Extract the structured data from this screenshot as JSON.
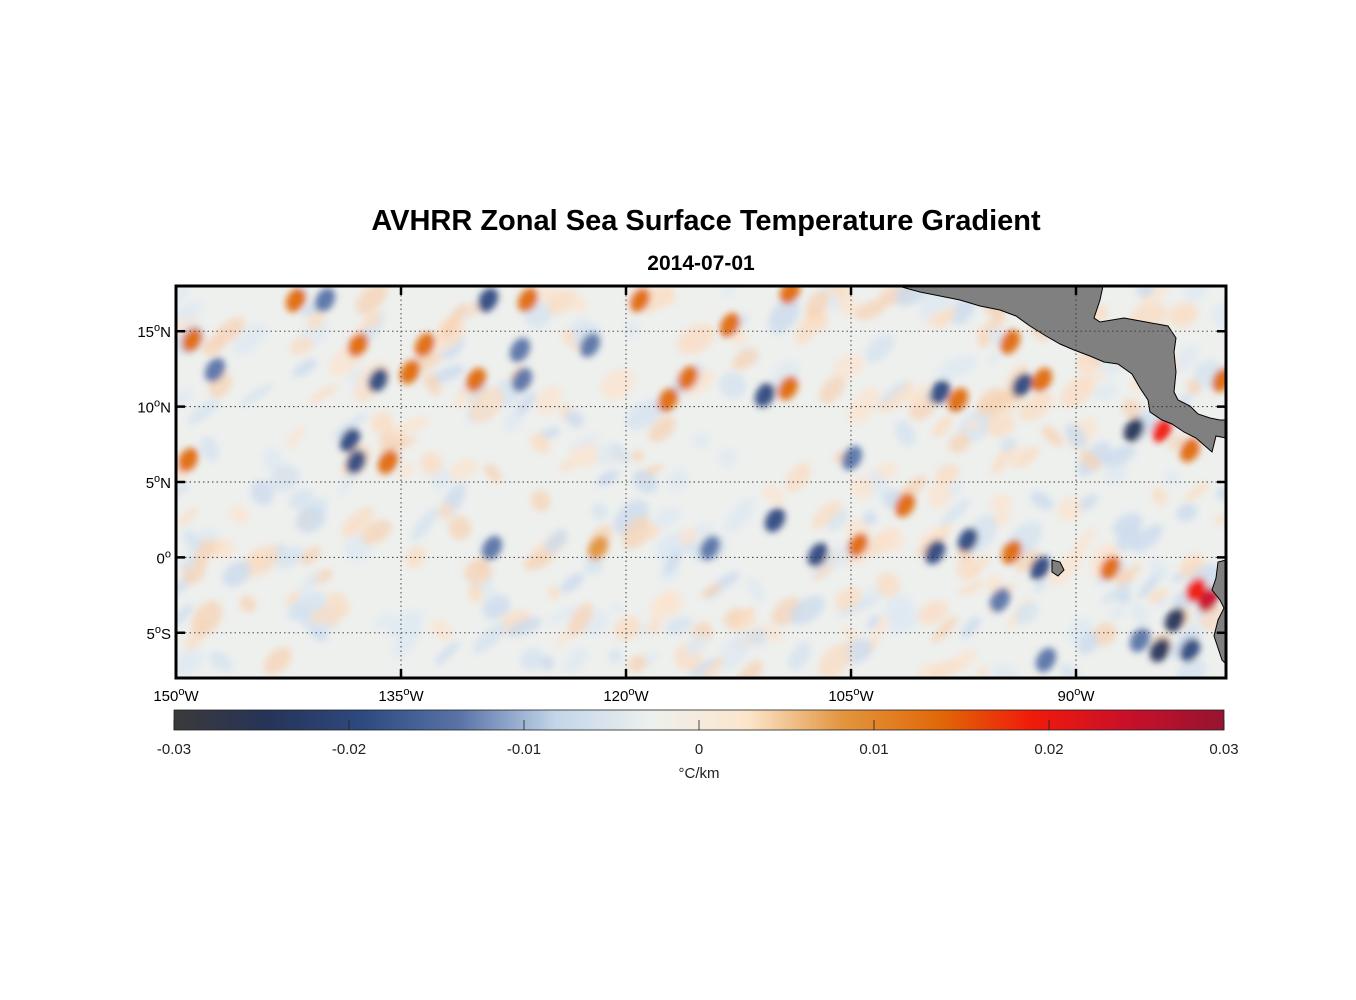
{
  "title": "AVHRR Zonal Sea Surface Temperature Gradient",
  "subtitle": "2014-07-01",
  "map": {
    "lon_range": [
      -150,
      -80
    ],
    "lat_range": [
      -8,
      18
    ],
    "lat_ticks": [
      {
        "value": 15,
        "deg": "15",
        "hemi": "N"
      },
      {
        "value": 10,
        "deg": "10",
        "hemi": "N"
      },
      {
        "value": 5,
        "deg": "5",
        "hemi": "N"
      },
      {
        "value": 0,
        "deg": "0",
        "hemi": ""
      },
      {
        "value": -5,
        "deg": "5",
        "hemi": "S"
      }
    ],
    "lon_ticks": [
      {
        "value": -150,
        "deg": "150",
        "hemi": "W"
      },
      {
        "value": -135,
        "deg": "135",
        "hemi": "W"
      },
      {
        "value": -120,
        "deg": "120",
        "hemi": "W"
      },
      {
        "value": -105,
        "deg": "105",
        "hemi": "W"
      },
      {
        "value": -90,
        "deg": "90",
        "hemi": "W"
      }
    ],
    "land_color": "#808080",
    "gridlines": true
  },
  "colorbar": {
    "label": "°C/km",
    "range": [
      -0.03,
      0.03
    ],
    "ticks": [
      {
        "value": -0.03,
        "label": "-0.03"
      },
      {
        "value": -0.02,
        "label": "-0.02"
      },
      {
        "value": -0.01,
        "label": "-0.01"
      },
      {
        "value": 0,
        "label": "0"
      },
      {
        "value": 0.01,
        "label": "0.01"
      },
      {
        "value": 0.02,
        "label": "0.02"
      },
      {
        "value": 0.03,
        "label": "0.03"
      }
    ],
    "colors": [
      "#3a3a3a",
      "#263459",
      "#2e4a80",
      "#5a74a8",
      "#c2d6ea",
      "#eef0ee",
      "#fbe6cc",
      "#e3953f",
      "#e06a08",
      "#f01a0a",
      "#c8102a",
      "#961430"
    ]
  }
}
